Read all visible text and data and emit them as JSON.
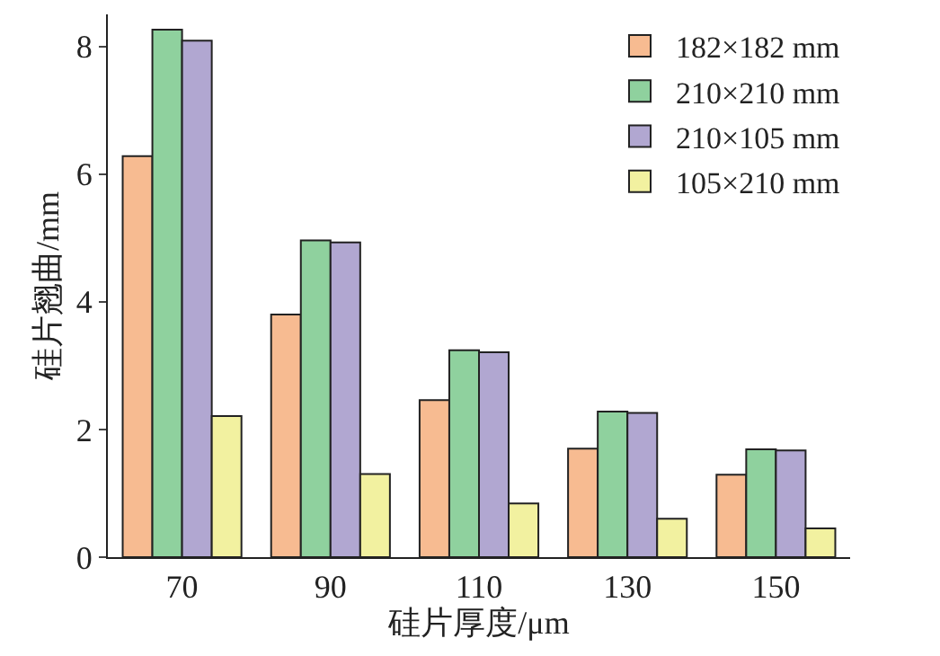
{
  "chart_data": {
    "type": "bar",
    "xlabel": "硅片厚度/μm",
    "ylabel": "硅片翘曲/mm",
    "categories": [
      "70",
      "90",
      "110",
      "130",
      "150"
    ],
    "series": [
      {
        "name": "182×182 mm",
        "color": "#f7bb91",
        "values": [
          6.28,
          3.8,
          2.46,
          1.7,
          1.29
        ]
      },
      {
        "name": "210×210 mm",
        "color": "#8fd19e",
        "values": [
          8.26,
          4.96,
          3.24,
          2.28,
          1.69
        ]
      },
      {
        "name": "210×105 mm",
        "color": "#b1a7d1",
        "values": [
          8.09,
          4.93,
          3.21,
          2.26,
          1.67
        ]
      },
      {
        "name": "105×210 mm",
        "color": "#f2f1a0",
        "values": [
          2.21,
          1.3,
          0.84,
          0.6,
          0.45
        ]
      }
    ],
    "ylim": [
      0,
      8.5
    ],
    "yticks": [
      0,
      2,
      4,
      6,
      8
    ],
    "legend": "top right"
  }
}
